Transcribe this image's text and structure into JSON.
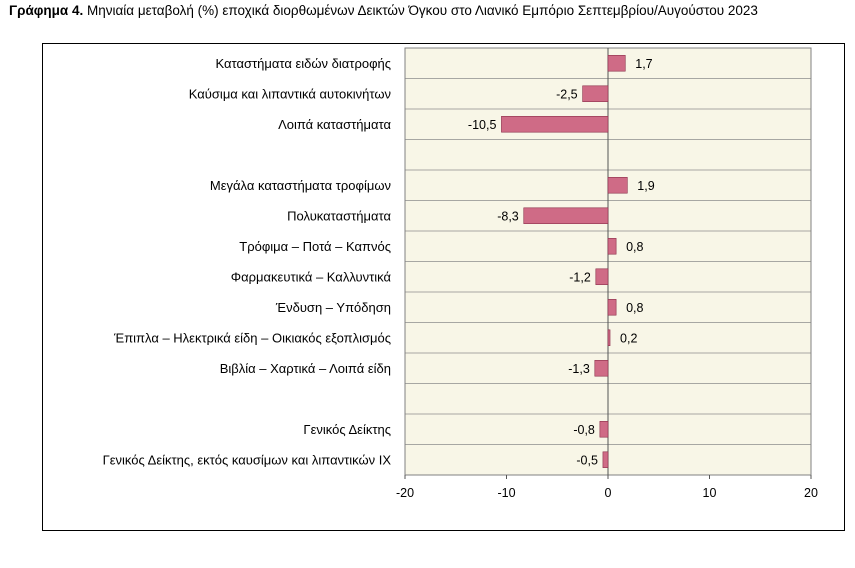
{
  "title": {
    "prefix": "Γράφημα 4.",
    "text": " Μηνιαία μεταβολή (%) εποχικά διορθωμένων Δεικτών Όγκου στο Λιανικό Εμπόριο Σεπτεμβρίου/Αυγούστου 2023"
  },
  "colors": {
    "bar_fill": "#cf6b86",
    "bar_stroke": "#8a2e4a",
    "plot_bg": "#f8f6e7",
    "grid": "#8c8c8c"
  },
  "chart_data": {
    "type": "bar",
    "orientation": "horizontal",
    "categories": [
      "Καταστήματα ειδών διατροφής",
      "Καύσιμα και λιπαντικά αυτοκινήτων",
      "Λοιπά καταστήματα",
      "",
      "Μεγάλα καταστήματα τροφίμων",
      "Πολυκαταστήματα",
      "Τρόφιμα – Ποτά – Καπνός",
      "Φαρμακευτικά – Καλλυντικά",
      "Ένδυση – Υπόδηση",
      "Έπιπλα – Ηλεκτρικά είδη – Οικιακός εξοπλισμός",
      "Βιβλία – Χαρτικά – Λοιπά είδη",
      "",
      "Γενικός Δείκτης",
      "Γενικός Δείκτης, εκτός καυσίμων και λιπαντικών ΙΧ"
    ],
    "values": [
      1.7,
      -2.5,
      -10.5,
      null,
      1.9,
      -8.3,
      0.8,
      -1.2,
      0.8,
      0.2,
      -1.3,
      null,
      -0.8,
      -0.5
    ],
    "data_labels": [
      "1,7",
      "-2,5",
      "-10,5",
      "",
      "1,9",
      "-8,3",
      "0,8",
      "-1,2",
      "0,8",
      "0,2",
      "-1,3",
      "",
      "-0,8",
      "-0,5"
    ],
    "xlim": [
      -20,
      20
    ],
    "x_ticks": [
      -20,
      -10,
      0,
      10,
      20
    ],
    "x_tick_labels": [
      "-20",
      "-10",
      "0",
      "10",
      "20"
    ],
    "grid": true,
    "legend": "none"
  }
}
